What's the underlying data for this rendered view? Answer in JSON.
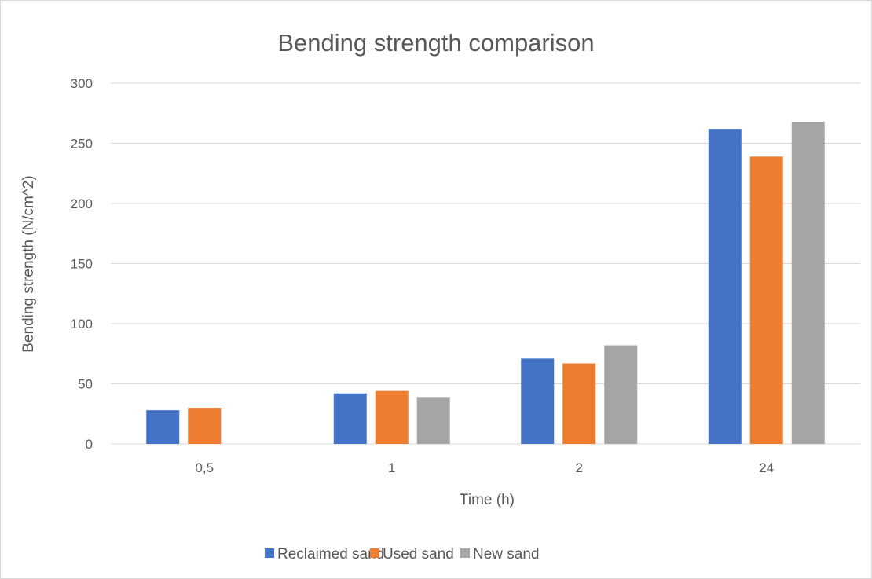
{
  "chart_data": {
    "type": "bar",
    "title": "Bending strength comparison",
    "xlabel": "Time (h)",
    "ylabel": "Bending strength (N/cm^2)",
    "categories": [
      "0,5",
      "1",
      "2",
      "24"
    ],
    "series": [
      {
        "name": "Reclaimed sand",
        "values": [
          28,
          42,
          71,
          262
        ],
        "color": "#4472C4"
      },
      {
        "name": "Used sand",
        "values": [
          30,
          44,
          67,
          239
        ],
        "color": "#ED7D31"
      },
      {
        "name": "New sand",
        "values": [
          null,
          39,
          82,
          268
        ],
        "color": "#A5A5A5"
      }
    ],
    "ylim": [
      0,
      300
    ],
    "yticks": [
      "0",
      "50",
      "100",
      "150",
      "200",
      "250",
      "300"
    ],
    "grid": true,
    "legend_position": "bottom"
  }
}
